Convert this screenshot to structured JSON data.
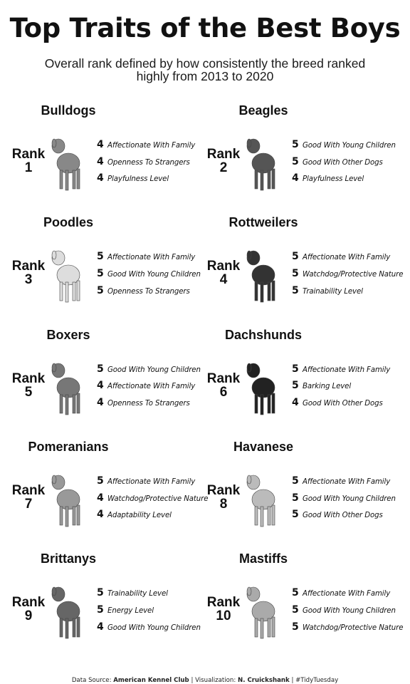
{
  "title": "Top Traits of the Best Boys",
  "subtitle": "Overall rank defined by how consistently the breed ranked highly from 2013 to 2020",
  "caption": {
    "source_label": "Data Source:",
    "source": "American Kennel Club",
    "sep1": "|",
    "viz_label": "Visualization:",
    "author": "N. Cruickshank",
    "sep2": "|",
    "tag": "#TidyTuesday"
  },
  "chart_data": {
    "type": "table",
    "columns": [
      "rank",
      "breed",
      "trait score",
      "trait"
    ],
    "breeds": [
      {
        "breed": "Bulldogs",
        "rank_label": "Rank",
        "rank": "1",
        "traits": [
          {
            "score": 4,
            "name": "Affectionate With Family"
          },
          {
            "score": 4,
            "name": "Openness To Strangers"
          },
          {
            "score": 4,
            "name": "Playfulness Level"
          }
        ]
      },
      {
        "breed": "Beagles",
        "rank_label": "Rank",
        "rank": "2",
        "traits": [
          {
            "score": 5,
            "name": "Good With Young Children"
          },
          {
            "score": 5,
            "name": "Good With Other Dogs"
          },
          {
            "score": 4,
            "name": "Playfulness Level"
          }
        ]
      },
      {
        "breed": "Poodles",
        "rank_label": "Rank",
        "rank": "3",
        "traits": [
          {
            "score": 5,
            "name": "Affectionate With Family"
          },
          {
            "score": 5,
            "name": "Good With Young Children"
          },
          {
            "score": 5,
            "name": "Openness To Strangers"
          }
        ]
      },
      {
        "breed": "Rottweilers",
        "rank_label": "Rank",
        "rank": "4",
        "traits": [
          {
            "score": 5,
            "name": "Affectionate With Family"
          },
          {
            "score": 5,
            "name": "Watchdog/Protective Nature"
          },
          {
            "score": 5,
            "name": "Trainability Level"
          }
        ]
      },
      {
        "breed": "Boxers",
        "rank_label": "Rank",
        "rank": "5",
        "traits": [
          {
            "score": 5,
            "name": "Good With Young Children"
          },
          {
            "score": 4,
            "name": "Affectionate With Family"
          },
          {
            "score": 4,
            "name": "Openness To Strangers"
          }
        ]
      },
      {
        "breed": "Dachshunds",
        "rank_label": "Rank",
        "rank": "6",
        "traits": [
          {
            "score": 5,
            "name": "Affectionate With Family"
          },
          {
            "score": 5,
            "name": "Barking Level"
          },
          {
            "score": 4,
            "name": "Good With Other Dogs"
          }
        ]
      },
      {
        "breed": "Pomeranians",
        "rank_label": "Rank",
        "rank": "7",
        "traits": [
          {
            "score": 5,
            "name": "Affectionate With Family"
          },
          {
            "score": 4,
            "name": "Watchdog/Protective Nature"
          },
          {
            "score": 4,
            "name": "Adaptability Level"
          }
        ]
      },
      {
        "breed": "Havanese",
        "rank_label": "Rank",
        "rank": "8",
        "traits": [
          {
            "score": 5,
            "name": "Affectionate With Family"
          },
          {
            "score": 5,
            "name": "Good With Young Children"
          },
          {
            "score": 5,
            "name": "Good With Other Dogs"
          }
        ]
      },
      {
        "breed": "Brittanys",
        "rank_label": "Rank",
        "rank": "9",
        "traits": [
          {
            "score": 5,
            "name": "Trainability Level"
          },
          {
            "score": 5,
            "name": "Energy Level"
          },
          {
            "score": 4,
            "name": "Good With Young Children"
          }
        ]
      },
      {
        "breed": "Mastiffs",
        "rank_label": "Rank",
        "rank": "10",
        "traits": [
          {
            "score": 5,
            "name": "Affectionate With Family"
          },
          {
            "score": 5,
            "name": "Good With Young Children"
          },
          {
            "score": 5,
            "name": "Watchdog/Protective Nature"
          }
        ]
      }
    ]
  }
}
